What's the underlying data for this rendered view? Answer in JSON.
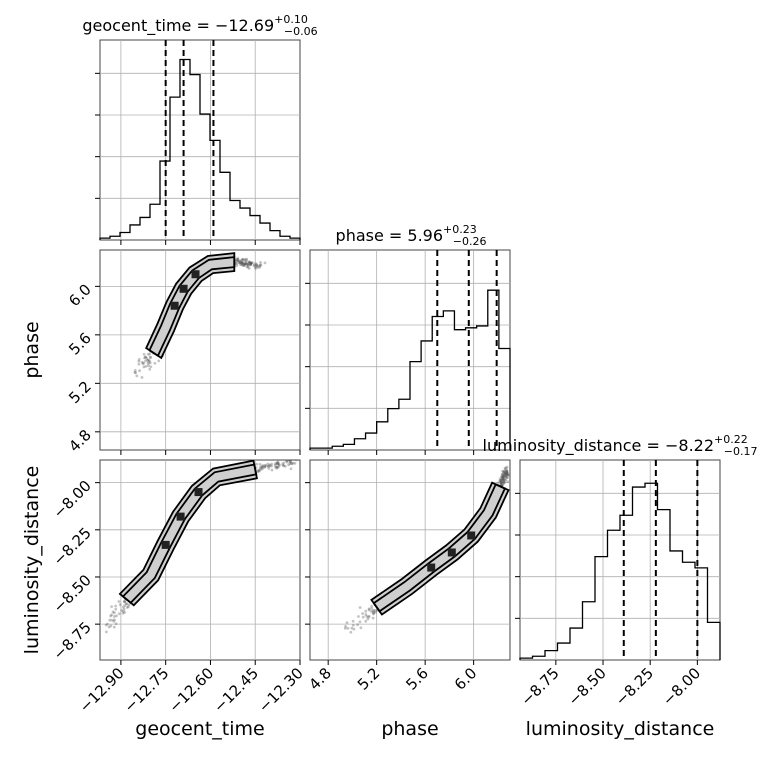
{
  "titles": {
    "p0": {
      "name": "geocent_time",
      "eq": " = ",
      "median": "−12.69",
      "plus": "+0.10",
      "minus": "−0.06"
    },
    "p1": {
      "name": "phase",
      "eq": " = ",
      "median": "5.96",
      "plus": "+0.23",
      "minus": "−0.26"
    },
    "p2": {
      "name": "luminosity_distance",
      "eq": " = ",
      "median": "−8.22",
      "plus": "+0.22",
      "minus": "−0.17"
    }
  },
  "axis_labels": {
    "x0": "geocent_time",
    "x1": "phase",
    "x2": "luminosity_distance",
    "y1": "phase",
    "y2": "luminosity_distance"
  },
  "chart_data": {
    "type": "corner",
    "parameters": [
      "geocent_time",
      "phase",
      "luminosity_distance"
    ],
    "ranges": {
      "geocent_time": [
        -12.97,
        -12.3
      ],
      "phase": [
        4.65,
        6.3
      ],
      "luminosity_distance": [
        -8.94,
        -7.88
      ]
    },
    "ticks": {
      "geocent_time": {
        "values": [
          -12.9,
          -12.75,
          -12.6,
          -12.45,
          -12.3
        ],
        "labels": [
          "−12.90",
          "−12.75",
          "−12.60",
          "−12.45",
          "−12.30"
        ]
      },
      "phase": {
        "values": [
          4.8,
          5.2,
          5.6,
          6.0
        ],
        "labels": [
          "4.8",
          "5.2",
          "5.6",
          "6.0"
        ]
      },
      "luminosity_distance": {
        "values": [
          -8.75,
          -8.5,
          -8.25,
          -8.0
        ],
        "labels": [
          "−8.75",
          "−8.50",
          "−8.25",
          "−8.00"
        ]
      }
    },
    "quantiles": {
      "geocent_time": [
        -12.75,
        -12.69,
        -12.59
      ],
      "phase": [
        5.7,
        5.96,
        6.19
      ],
      "luminosity_distance": [
        -8.39,
        -8.22,
        -8.0
      ]
    },
    "histograms": {
      "geocent_time": [
        0.01,
        0.02,
        0.04,
        0.08,
        0.12,
        0.19,
        0.42,
        0.76,
        0.96,
        0.88,
        0.67,
        0.53,
        0.36,
        0.21,
        0.17,
        0.13,
        0.09,
        0.05,
        0.02,
        0.01
      ],
      "phase": [
        0.01,
        0.01,
        0.02,
        0.03,
        0.06,
        0.09,
        0.15,
        0.22,
        0.27,
        0.47,
        0.58,
        0.71,
        0.74,
        0.64,
        0.65,
        0.66,
        0.85,
        0.54
      ],
      "luminosity_distance": [
        0.01,
        0.02,
        0.05,
        0.09,
        0.17,
        0.31,
        0.55,
        0.69,
        0.77,
        0.92,
        0.94,
        0.8,
        0.58,
        0.52,
        0.49,
        0.2
      ]
    },
    "correlation": [
      {
        "x": "geocent_time",
        "y": "phase",
        "ridge_x": [
          -12.85,
          -12.79,
          -12.75,
          -12.72,
          -12.69,
          -12.65,
          -12.6,
          -12.52,
          -12.43
        ],
        "ridge_y": [
          5.28,
          5.45,
          5.66,
          5.84,
          5.98,
          6.1,
          6.18,
          6.2,
          6.18
        ]
      },
      {
        "x": "geocent_time",
        "y": "luminosity_distance",
        "ridge_x": [
          -12.95,
          -12.88,
          -12.8,
          -12.75,
          -12.7,
          -12.64,
          -12.58,
          -12.45,
          -12.32
        ],
        "ridge_y": [
          -8.78,
          -8.62,
          -8.49,
          -8.33,
          -8.18,
          -8.05,
          -7.97,
          -7.93,
          -7.89
        ]
      },
      {
        "x": "phase",
        "y": "luminosity_distance",
        "ridge_x": [
          4.95,
          5.2,
          5.45,
          5.65,
          5.82,
          5.98,
          6.12,
          6.22,
          6.28
        ],
        "ridge_y": [
          -8.78,
          -8.66,
          -8.55,
          -8.45,
          -8.37,
          -8.28,
          -8.16,
          -8.02,
          -7.93
        ]
      }
    ]
  }
}
